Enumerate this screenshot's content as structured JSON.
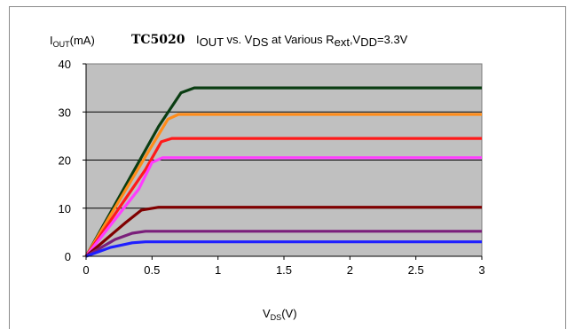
{
  "chart_data": {
    "type": "line",
    "title_name": "TC5020",
    "title": {
      "i": "I",
      "i_sub": "OUT",
      "vs": " vs. V",
      "vs_sub": "DS",
      "at": " at Various R",
      "at_sub": "ext",
      "vdd": ",V",
      "vdd_sub": "DD",
      "end": "=3.3V"
    },
    "ylabel": {
      "main": "I",
      "sub": "OUT",
      "unit": "(mA)"
    },
    "xlabel": {
      "main": "V",
      "sub": "DS",
      "unit": "(V)"
    },
    "xlim": [
      0,
      3
    ],
    "ylim": [
      0,
      40
    ],
    "xticks": [
      "0",
      "0.5",
      "1",
      "1.5",
      "2",
      "2.5",
      "3"
    ],
    "yticks": [
      "0",
      "10",
      "20",
      "30",
      "40"
    ],
    "grid": "horizontal",
    "plot_background": "#c0c0c0",
    "series": [
      {
        "color": "#0a3d12",
        "points": [
          [
            0,
            0
          ],
          [
            0.55,
            27
          ],
          [
            0.72,
            34
          ],
          [
            0.82,
            35
          ],
          [
            3,
            35
          ]
        ]
      },
      {
        "color": "#ff8c1a",
        "points": [
          [
            0,
            0
          ],
          [
            0.5,
            23
          ],
          [
            0.62,
            28.5
          ],
          [
            0.7,
            29.5
          ],
          [
            3,
            29.5
          ]
        ]
      },
      {
        "color": "#ff1a1a",
        "points": [
          [
            0,
            0
          ],
          [
            0.45,
            18
          ],
          [
            0.57,
            23.8
          ],
          [
            0.65,
            24.5
          ],
          [
            3,
            24.5
          ]
        ]
      },
      {
        "color": "#ff3cff",
        "points": [
          [
            0,
            0
          ],
          [
            0.4,
            14
          ],
          [
            0.5,
            19.5
          ],
          [
            0.58,
            20.5
          ],
          [
            3,
            20.5
          ]
        ]
      },
      {
        "color": "#800000",
        "points": [
          [
            0,
            0
          ],
          [
            0.3,
            7
          ],
          [
            0.42,
            9.6
          ],
          [
            0.55,
            10.2
          ],
          [
            3,
            10.2
          ]
        ]
      },
      {
        "color": "#7a1f7a",
        "points": [
          [
            0,
            0
          ],
          [
            0.22,
            3.5
          ],
          [
            0.35,
            4.8
          ],
          [
            0.45,
            5.2
          ],
          [
            3,
            5.2
          ]
        ]
      },
      {
        "color": "#1f1fff",
        "points": [
          [
            0,
            0
          ],
          [
            0.18,
            1.8
          ],
          [
            0.35,
            2.8
          ],
          [
            0.45,
            3
          ],
          [
            3,
            3
          ]
        ]
      }
    ]
  }
}
